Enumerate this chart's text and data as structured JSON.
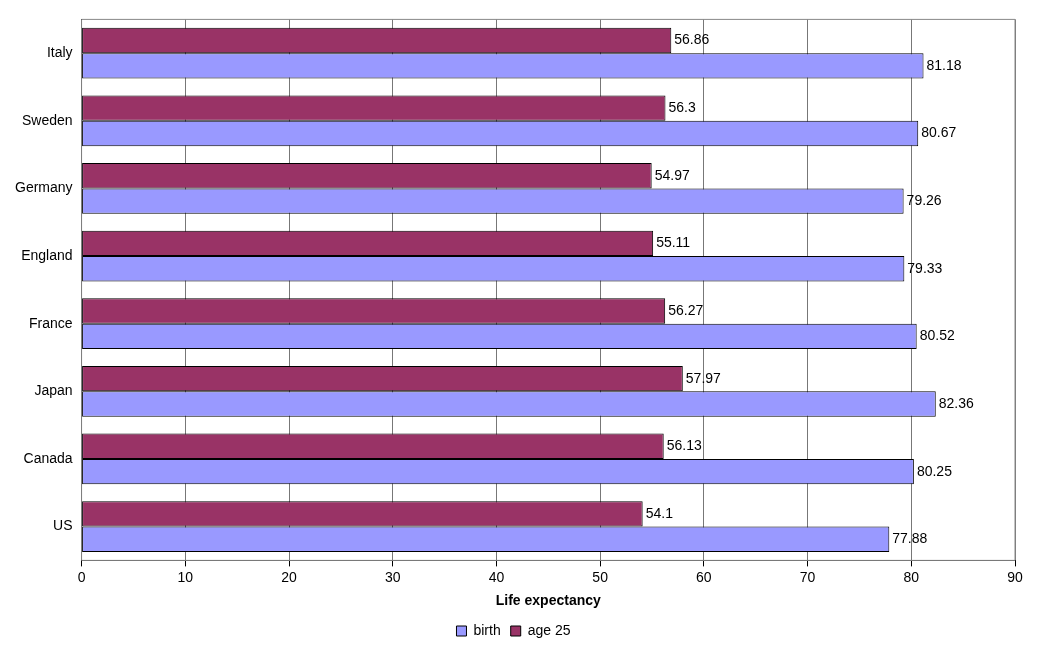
{
  "chart_data": {
    "type": "bar",
    "orientation": "horizontal",
    "xlabel": "Life expectancy",
    "categories": [
      "Italy",
      "Sweden",
      "Germany",
      "England",
      "France",
      "Japan",
      "Canada",
      "US"
    ],
    "series": [
      {
        "name": "birth",
        "color": "#9999ff",
        "values": [
          81.18,
          80.67,
          79.26,
          79.33,
          80.52,
          82.36,
          80.25,
          77.88
        ]
      },
      {
        "name": "age 25",
        "color": "#993366",
        "values": [
          56.86,
          56.3,
          54.97,
          55.11,
          56.27,
          57.97,
          56.13,
          54.1
        ]
      }
    ],
    "xlim": [
      0,
      90
    ],
    "xticks": [
      0,
      10,
      20,
      30,
      40,
      50,
      60,
      70,
      80,
      90
    ],
    "grid": "x",
    "legend": "bottom",
    "data_labels": true
  }
}
